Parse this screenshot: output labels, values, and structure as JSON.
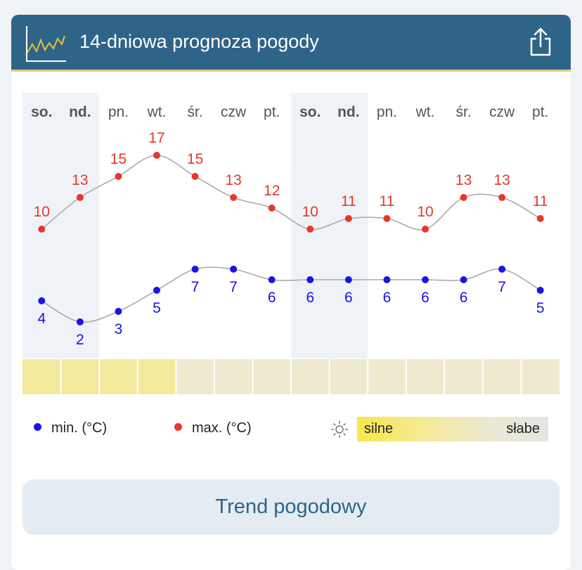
{
  "header": {
    "title": "14-dniowa prognoza pogody",
    "chart_icon": "line-chart-icon",
    "share_icon": "share-icon"
  },
  "chart_data": {
    "type": "line",
    "days": [
      "so.",
      "nd.",
      "pn.",
      "wt.",
      "śr.",
      "czw",
      "pt.",
      "so.",
      "nd.",
      "pn.",
      "wt.",
      "śr.",
      "czw",
      "pt."
    ],
    "weekend": [
      true,
      true,
      false,
      false,
      false,
      false,
      false,
      true,
      true,
      false,
      false,
      false,
      false,
      false
    ],
    "series": [
      {
        "name": "max. (°C)",
        "color": "#e8372a",
        "values": [
          10,
          13,
          15,
          17,
          15,
          13,
          12,
          10,
          11,
          11,
          10,
          13,
          13,
          11
        ]
      },
      {
        "name": "min. (°C)",
        "color": "#1a13e8",
        "values": [
          4,
          2,
          3,
          5,
          7,
          7,
          6,
          6,
          6,
          6,
          6,
          6,
          7,
          5
        ]
      }
    ],
    "sunshine": {
      "levels": [
        "strong",
        "strong",
        "strong",
        "strong",
        "weak",
        "weak",
        "weak",
        "weak",
        "weak",
        "weak",
        "weak",
        "weak",
        "weak",
        "weak"
      ],
      "colors": {
        "strong": "#f3ea9e",
        "weak": "#eeead0"
      }
    }
  },
  "legend": {
    "min": "min. (°C)",
    "max": "max. (°C)",
    "sun_strong": "silne",
    "sun_weak": "słabe",
    "sun_icon": "sun-icon"
  },
  "button": {
    "label": "Trend pogodowy"
  }
}
